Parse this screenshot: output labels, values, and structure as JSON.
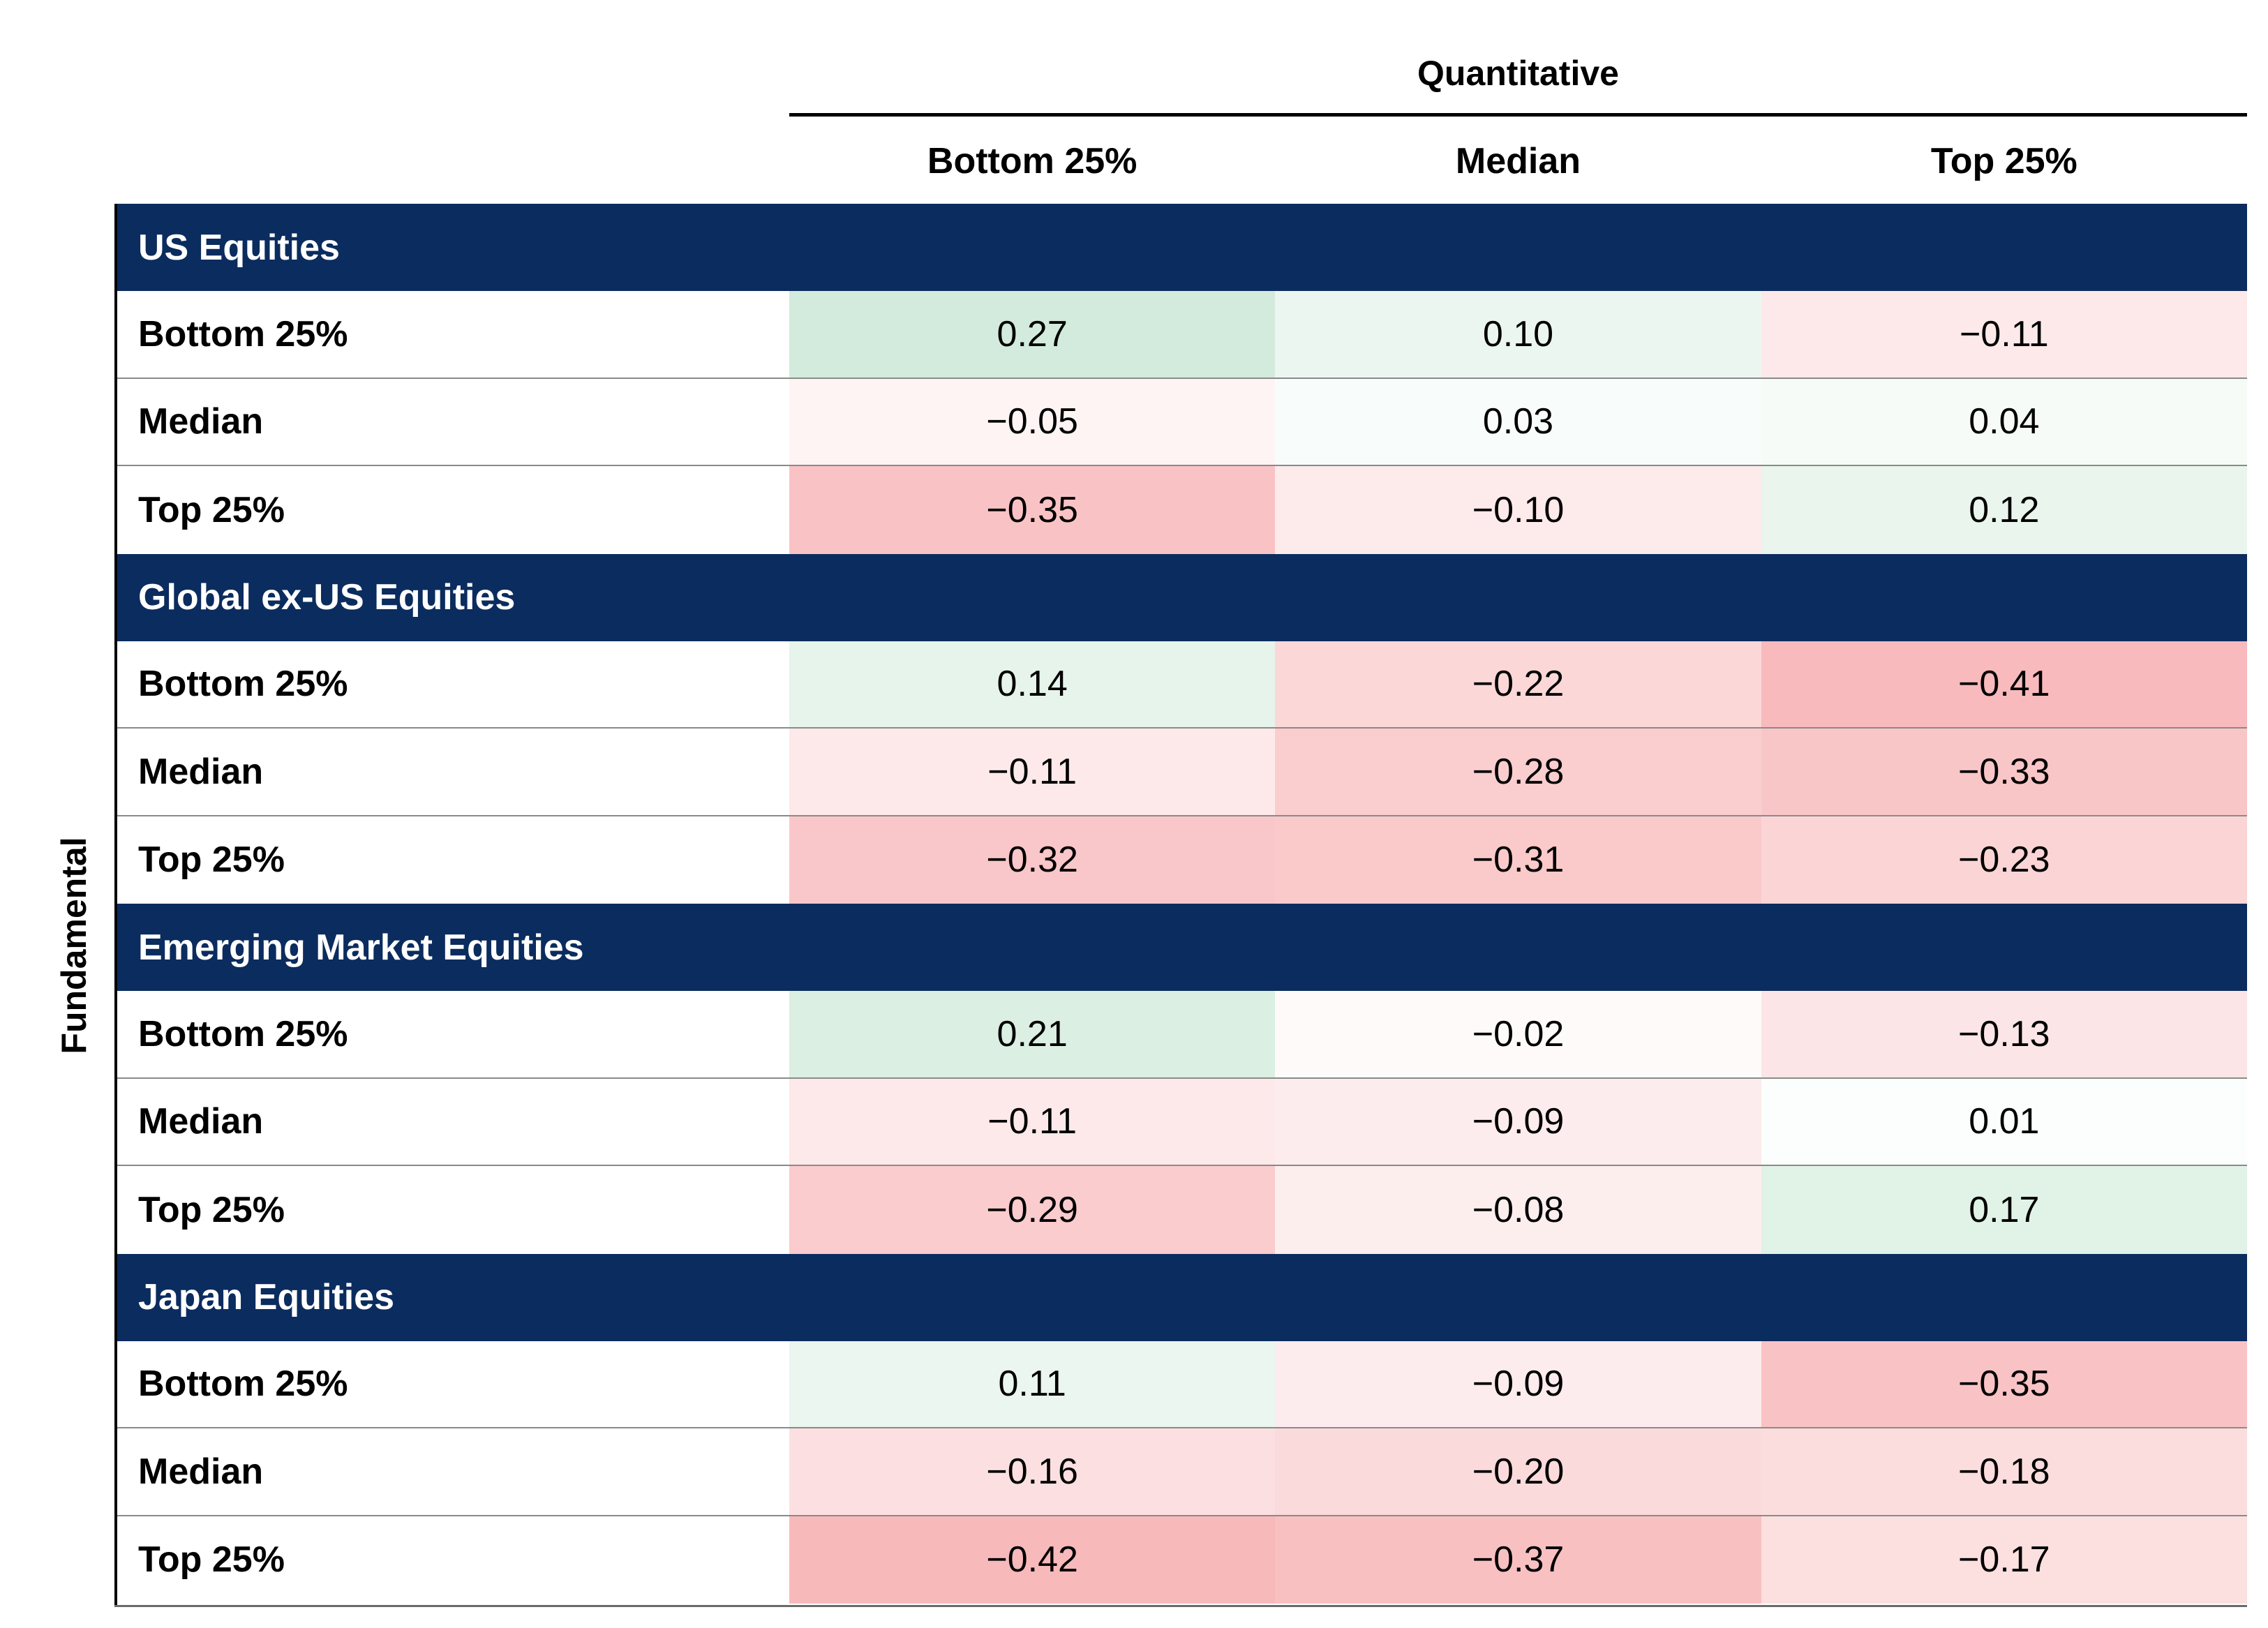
{
  "chart_data": {
    "type": "heatmap",
    "row_axis_label": "Fundamental",
    "column_axis_label": "Quantitative",
    "columns": [
      "Bottom 25%",
      "Median",
      "Top 25%"
    ],
    "colors": {
      "section_header_bg": "#0b2c5e",
      "positive": "#d3ebdc",
      "negative": "#f8b9bb",
      "neutral": "#ffffff"
    },
    "groups": [
      {
        "name": "US Equities",
        "rows": [
          {
            "label": "Bottom 25%",
            "values": [
              "0.27",
              "0.10",
              "−0.11"
            ]
          },
          {
            "label": "Median",
            "values": [
              "−0.05",
              "0.03",
              "0.04"
            ]
          },
          {
            "label": "Top 25%",
            "values": [
              "−0.35",
              "−0.10",
              "0.12"
            ]
          }
        ]
      },
      {
        "name": "Global ex-US Equities",
        "rows": [
          {
            "label": "Bottom 25%",
            "values": [
              "0.14",
              "−0.22",
              "−0.41"
            ]
          },
          {
            "label": "Median",
            "values": [
              "−0.11",
              "−0.28",
              "−0.33"
            ]
          },
          {
            "label": "Top 25%",
            "values": [
              "−0.32",
              "−0.31",
              "−0.23"
            ]
          }
        ]
      },
      {
        "name": "Emerging Market Equities",
        "rows": [
          {
            "label": "Bottom 25%",
            "values": [
              "0.21",
              "−0.02",
              "−0.13"
            ]
          },
          {
            "label": "Median",
            "values": [
              "−0.11",
              "−0.09",
              "0.01"
            ]
          },
          {
            "label": "Top 25%",
            "values": [
              "−0.29",
              "−0.08",
              "0.17"
            ]
          }
        ]
      },
      {
        "name": "Japan Equities",
        "rows": [
          {
            "label": "Bottom 25%",
            "values": [
              "0.11",
              "−0.09",
              "−0.35"
            ]
          },
          {
            "label": "Median",
            "values": [
              "−0.16",
              "−0.20",
              "−0.18"
            ]
          },
          {
            "label": "Top 25%",
            "values": [
              "−0.42",
              "−0.37",
              "−0.17"
            ]
          }
        ]
      }
    ]
  }
}
